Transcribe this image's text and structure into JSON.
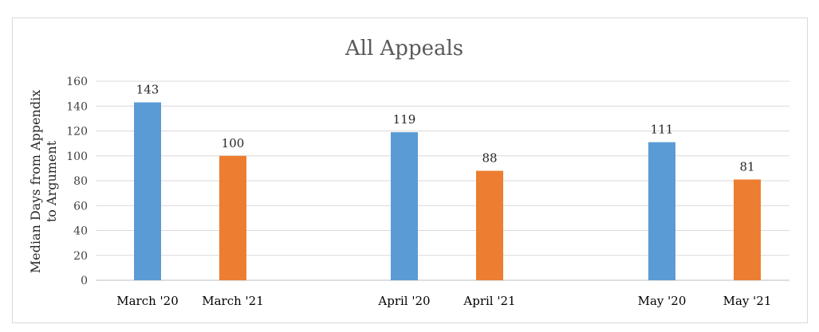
{
  "chart_data": {
    "type": "bar",
    "title": "All Appeals",
    "ylabel_lines": [
      "Median Days from Appendix",
      "to Argument"
    ],
    "ylim": [
      0,
      160
    ],
    "yticks": [
      0,
      20,
      40,
      60,
      80,
      100,
      120,
      140,
      160
    ],
    "grid": true,
    "categories": [
      "March '20",
      "March '21",
      "April '20",
      "April '21",
      "May '20",
      "May '21"
    ],
    "values": [
      143,
      100,
      119,
      88,
      111,
      81
    ],
    "colors": [
      "#5b9bd5",
      "#ed7d31",
      "#5b9bd5",
      "#ed7d31",
      "#5b9bd5",
      "#ed7d31"
    ]
  }
}
